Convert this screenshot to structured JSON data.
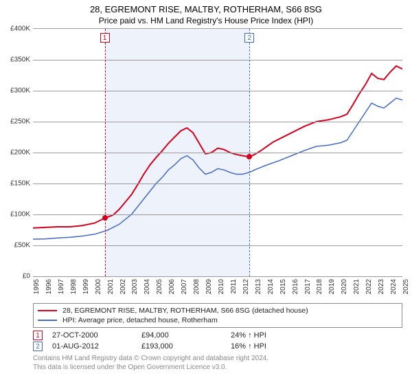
{
  "title": "28, EGREMONT RISE, MALTBY, ROTHERHAM, S66 8SG",
  "subtitle": "Price paid vs. HM Land Registry's House Price Index (HPI)",
  "chart": {
    "type": "line",
    "background_color": "#ffffff",
    "grid_color": "#999999",
    "shade_color": "#eef3fb",
    "ylim": [
      0,
      400000
    ],
    "ytick_step": 50000,
    "yticks": [
      "£0",
      "£50K",
      "£100K",
      "£150K",
      "£200K",
      "£250K",
      "£300K",
      "£350K",
      "£400K"
    ],
    "xlim": [
      1995,
      2025
    ],
    "xticks": [
      "1995",
      "1996",
      "1997",
      "1998",
      "1999",
      "2000",
      "2001",
      "2002",
      "2003",
      "2004",
      "2005",
      "2006",
      "2007",
      "2008",
      "2009",
      "2010",
      "2011",
      "2012",
      "2013",
      "2014",
      "2015",
      "2016",
      "2017",
      "2018",
      "2019",
      "2020",
      "2021",
      "2022",
      "2023",
      "2024",
      "2025"
    ],
    "shade_range": [
      2000.83,
      2012.58
    ],
    "series": [
      {
        "name": "price_paid",
        "color": "#d6001c",
        "width": 2,
        "points": [
          [
            1995,
            78000
          ],
          [
            1996,
            79000
          ],
          [
            1997,
            80000
          ],
          [
            1998,
            80000
          ],
          [
            1999,
            82000
          ],
          [
            2000,
            86000
          ],
          [
            2000.83,
            94000
          ],
          [
            2001.5,
            99000
          ],
          [
            2002,
            108000
          ],
          [
            2002.5,
            120000
          ],
          [
            2003,
            132000
          ],
          [
            2003.5,
            148000
          ],
          [
            2004,
            165000
          ],
          [
            2004.5,
            180000
          ],
          [
            2005,
            192000
          ],
          [
            2005.5,
            203000
          ],
          [
            2006,
            215000
          ],
          [
            2006.5,
            225000
          ],
          [
            2007,
            235000
          ],
          [
            2007.5,
            240000
          ],
          [
            2008,
            232000
          ],
          [
            2008.5,
            215000
          ],
          [
            2009,
            198000
          ],
          [
            2009.5,
            200000
          ],
          [
            2010,
            207000
          ],
          [
            2010.5,
            205000
          ],
          [
            2011,
            200000
          ],
          [
            2011.5,
            197000
          ],
          [
            2012,
            195000
          ],
          [
            2012.58,
            193000
          ],
          [
            2013,
            197000
          ],
          [
            2013.5,
            203000
          ],
          [
            2014,
            210000
          ],
          [
            2014.5,
            217000
          ],
          [
            2015,
            222000
          ],
          [
            2015.5,
            227000
          ],
          [
            2016,
            232000
          ],
          [
            2017,
            242000
          ],
          [
            2018,
            250000
          ],
          [
            2019,
            253000
          ],
          [
            2020,
            258000
          ],
          [
            2020.5,
            262000
          ],
          [
            2021,
            278000
          ],
          [
            2021.5,
            295000
          ],
          [
            2022,
            310000
          ],
          [
            2022.5,
            328000
          ],
          [
            2023,
            320000
          ],
          [
            2023.5,
            318000
          ],
          [
            2024,
            330000
          ],
          [
            2024.5,
            340000
          ],
          [
            2025,
            335000
          ]
        ]
      },
      {
        "name": "hpi",
        "color": "#4169c8",
        "width": 1.5,
        "points": [
          [
            1995,
            60000
          ],
          [
            1996,
            60500
          ],
          [
            1997,
            62000
          ],
          [
            1998,
            63000
          ],
          [
            1999,
            65000
          ],
          [
            2000,
            68000
          ],
          [
            2001,
            74000
          ],
          [
            2002,
            84000
          ],
          [
            2003,
            100000
          ],
          [
            2004,
            125000
          ],
          [
            2005,
            150000
          ],
          [
            2005.5,
            160000
          ],
          [
            2006,
            172000
          ],
          [
            2006.5,
            180000
          ],
          [
            2007,
            190000
          ],
          [
            2007.5,
            195000
          ],
          [
            2008,
            188000
          ],
          [
            2008.5,
            175000
          ],
          [
            2009,
            165000
          ],
          [
            2009.5,
            168000
          ],
          [
            2010,
            174000
          ],
          [
            2010.5,
            172000
          ],
          [
            2011,
            168000
          ],
          [
            2011.5,
            165000
          ],
          [
            2012,
            165000
          ],
          [
            2012.58,
            168000
          ],
          [
            2013,
            172000
          ],
          [
            2014,
            180000
          ],
          [
            2015,
            187000
          ],
          [
            2016,
            195000
          ],
          [
            2017,
            203000
          ],
          [
            2018,
            210000
          ],
          [
            2019,
            212000
          ],
          [
            2020,
            216000
          ],
          [
            2020.5,
            220000
          ],
          [
            2021,
            235000
          ],
          [
            2021.5,
            250000
          ],
          [
            2022,
            265000
          ],
          [
            2022.5,
            280000
          ],
          [
            2023,
            275000
          ],
          [
            2023.5,
            272000
          ],
          [
            2024,
            280000
          ],
          [
            2024.5,
            288000
          ],
          [
            2025,
            285000
          ]
        ]
      }
    ],
    "markers": [
      {
        "id": "1",
        "color": "#d6001c",
        "x": 2000.83,
        "y": 94000
      },
      {
        "id": "2",
        "color": "#4169c8",
        "x": 2012.58,
        "y": 193000,
        "dot_color": "#d6001c"
      }
    ]
  },
  "legend": {
    "items": [
      {
        "color": "#d6001c",
        "label": "28, EGREMONT RISE, MALTBY, ROTHERHAM, S66 8SG (detached house)"
      },
      {
        "color": "#4169c8",
        "label": "HPI: Average price, detached house, Rotherham"
      }
    ]
  },
  "sales": [
    {
      "id": "1",
      "color": "#d6001c",
      "date": "27-OCT-2000",
      "price": "£94,000",
      "delta": "24% ↑ HPI"
    },
    {
      "id": "2",
      "color": "#4169c8",
      "date": "01-AUG-2012",
      "price": "£193,000",
      "delta": "16% ↑ HPI"
    }
  ],
  "footer_line1": "Contains HM Land Registry data © Crown copyright and database right 2024.",
  "footer_line2": "This data is licensed under the Open Government Licence v3.0."
}
